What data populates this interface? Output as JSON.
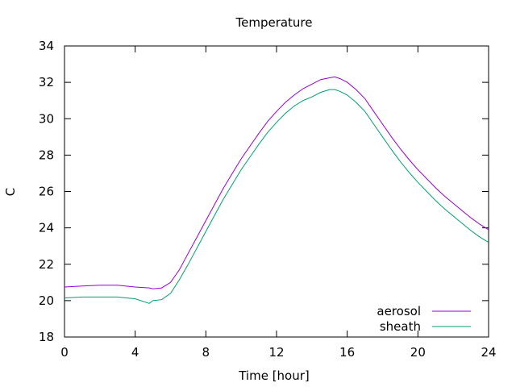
{
  "chart_data": {
    "type": "line",
    "title": "Temperature",
    "xlabel": "Time [hour]",
    "ylabel": "C",
    "xlim": [
      0,
      24
    ],
    "ylim": [
      18,
      34
    ],
    "xticks": [
      0,
      4,
      8,
      12,
      16,
      20,
      24
    ],
    "yticks": [
      18,
      20,
      22,
      24,
      26,
      28,
      30,
      32,
      34
    ],
    "grid": false,
    "legend_position": "bottom-right",
    "series": [
      {
        "name": "aerosol",
        "color": "#9400d3",
        "x": [
          0,
          1,
          2,
          3,
          4,
          4.8,
          5.0,
          5.5,
          6,
          6.5,
          7,
          7.5,
          8,
          8.5,
          9,
          9.5,
          10,
          10.5,
          11,
          11.5,
          12,
          12.5,
          13,
          13.5,
          14,
          14.5,
          15,
          15.3,
          15.6,
          16,
          16.5,
          17,
          17.5,
          18,
          18.5,
          19,
          19.5,
          20,
          20.5,
          21,
          21.5,
          22,
          22.5,
          23,
          23.5,
          24
        ],
        "y": [
          20.75,
          20.8,
          20.85,
          20.85,
          20.75,
          20.7,
          20.65,
          20.7,
          21.0,
          21.7,
          22.6,
          23.5,
          24.4,
          25.3,
          26.2,
          27.0,
          27.8,
          28.5,
          29.2,
          29.85,
          30.4,
          30.9,
          31.3,
          31.65,
          31.9,
          32.15,
          32.25,
          32.3,
          32.2,
          32.0,
          31.6,
          31.1,
          30.4,
          29.7,
          29.0,
          28.35,
          27.75,
          27.2,
          26.7,
          26.2,
          25.75,
          25.35,
          24.95,
          24.55,
          24.2,
          23.9
        ]
      },
      {
        "name": "sheath",
        "color": "#009e73",
        "x": [
          0,
          1,
          2,
          3,
          4,
          4.8,
          5.0,
          5.5,
          6,
          6.5,
          7,
          7.5,
          8,
          8.5,
          9,
          9.5,
          10,
          10.5,
          11,
          11.5,
          12,
          12.5,
          13,
          13.5,
          14,
          14.5,
          15,
          15.3,
          15.6,
          16,
          16.5,
          17,
          17.5,
          18,
          18.5,
          19,
          19.5,
          20,
          20.5,
          21,
          21.5,
          22,
          22.5,
          23,
          23.5,
          24
        ],
        "y": [
          20.15,
          20.2,
          20.2,
          20.2,
          20.1,
          19.85,
          20.0,
          20.05,
          20.4,
          21.15,
          22.0,
          22.9,
          23.8,
          24.7,
          25.6,
          26.4,
          27.2,
          27.9,
          28.6,
          29.25,
          29.8,
          30.3,
          30.7,
          31.0,
          31.2,
          31.45,
          31.6,
          31.6,
          31.5,
          31.3,
          30.9,
          30.4,
          29.7,
          29.0,
          28.3,
          27.65,
          27.05,
          26.5,
          26.0,
          25.5,
          25.05,
          24.65,
          24.25,
          23.85,
          23.5,
          23.2
        ]
      }
    ]
  }
}
